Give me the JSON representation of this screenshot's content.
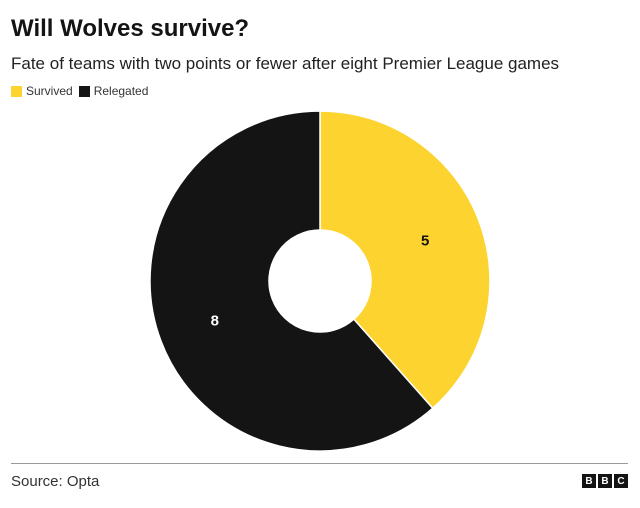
{
  "header": {
    "title": "Will Wolves survive?",
    "subtitle": "Fate of teams with two points or fewer after eight Premier League games"
  },
  "legend": {
    "items": [
      {
        "label": "Survived",
        "color": "#fdd32f"
      },
      {
        "label": "Relegated",
        "color": "#141414"
      }
    ]
  },
  "footer": {
    "source": "Source: Opta",
    "logo_letters": [
      "B",
      "B",
      "C"
    ]
  },
  "chart_data": {
    "type": "pie",
    "variant": "donut",
    "title": "Will Wolves survive?",
    "subtitle": "Fate of teams with two points or fewer after eight Premier League games",
    "categories": [
      "Survived",
      "Relegated"
    ],
    "values": [
      5,
      8
    ],
    "colors": [
      "#fdd32f",
      "#141414"
    ],
    "label_colors": [
      "#141414",
      "#ffffff"
    ],
    "data_labels": [
      "5",
      "8"
    ],
    "start": "top",
    "direction": "clockwise",
    "legend_position": "top-left"
  }
}
